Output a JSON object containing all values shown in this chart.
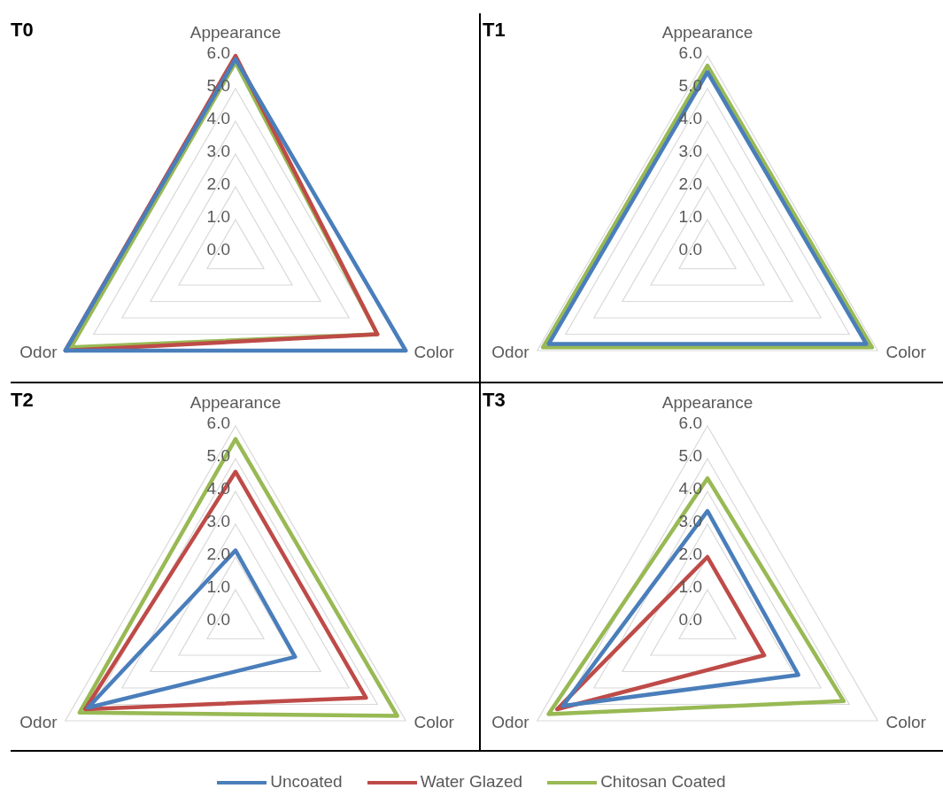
{
  "chart_data": [
    {
      "type": "radar",
      "title": "T0",
      "categories": [
        "Appearance",
        "Color",
        "Odor"
      ],
      "ylim": [
        0,
        6
      ],
      "yticks": [
        {
          "value": 0,
          "label": "0.0"
        },
        {
          "value": 1,
          "label": "1.0"
        },
        {
          "value": 2,
          "label": "2.0"
        },
        {
          "value": 3,
          "label": "3.0"
        },
        {
          "value": 4,
          "label": "4.0"
        },
        {
          "value": 5,
          "label": "5.0"
        },
        {
          "value": 6,
          "label": "6.0"
        }
      ],
      "grid": true,
      "marker": "none",
      "series": [
        {
          "color": "#4a7ebb",
          "values": [
            5.9,
            6.0,
            6.0
          ]
        },
        {
          "color": "#be4b48",
          "values": [
            6.0,
            5.0,
            6.0
          ]
        },
        {
          "color": "#98b954",
          "values": [
            5.8,
            5.0,
            5.8
          ]
        }
      ]
    },
    {
      "type": "radar",
      "title": "T1",
      "categories": [
        "Appearance",
        "Color",
        "Odor"
      ],
      "ylim": [
        0,
        6
      ],
      "yticks": [
        {
          "value": 0,
          "label": "0.0"
        },
        {
          "value": 1,
          "label": "1.0"
        },
        {
          "value": 2,
          "label": "2.0"
        },
        {
          "value": 3,
          "label": "3.0"
        },
        {
          "value": 4,
          "label": "4.0"
        },
        {
          "value": 5,
          "label": "5.0"
        },
        {
          "value": 6,
          "label": "6.0"
        }
      ],
      "grid": true,
      "marker": "none",
      "series": [
        {
          "color": "#4a7ebb",
          "values": [
            5.5,
            5.6,
            5.6
          ]
        },
        {
          "color": "#98b954",
          "values": [
            5.7,
            5.8,
            5.8
          ]
        }
      ]
    },
    {
      "type": "radar",
      "title": "T2",
      "categories": [
        "Appearance",
        "Color",
        "Odor"
      ],
      "ylim": [
        0,
        6
      ],
      "yticks": [
        {
          "value": 0,
          "label": "0.0"
        },
        {
          "value": 1,
          "label": "1.0"
        },
        {
          "value": 2,
          "label": "2.0"
        },
        {
          "value": 3,
          "label": "3.0"
        },
        {
          "value": 4,
          "label": "4.0"
        },
        {
          "value": 5,
          "label": "5.0"
        },
        {
          "value": 6,
          "label": "6.0"
        }
      ],
      "grid": true,
      "marker": "none",
      "series": [
        {
          "color": "#4a7ebb",
          "values": [
            2.2,
            2.1,
            5.2
          ]
        },
        {
          "color": "#be4b48",
          "values": [
            4.6,
            4.6,
            5.3
          ]
        },
        {
          "color": "#98b954",
          "values": [
            5.6,
            5.7,
            5.5
          ]
        }
      ]
    },
    {
      "type": "radar",
      "title": "T3",
      "categories": [
        "Appearance",
        "Color",
        "Odor"
      ],
      "ylim": [
        0,
        6
      ],
      "yticks": [
        {
          "value": 0,
          "label": "0.0"
        },
        {
          "value": 1,
          "label": "1.0"
        },
        {
          "value": 2,
          "label": "2.0"
        },
        {
          "value": 3,
          "label": "3.0"
        },
        {
          "value": 4,
          "label": "4.0"
        },
        {
          "value": 5,
          "label": "5.0"
        },
        {
          "value": 6,
          "label": "6.0"
        }
      ],
      "grid": true,
      "legend": "bottom",
      "marker": "none",
      "series": [
        {
          "name": "Uncoated",
          "color": "#4a7ebb",
          "values": [
            3.4,
            3.2,
            5.1
          ]
        },
        {
          "name": "Water Glazed",
          "color": "#be4b48",
          "values": [
            2.0,
            2.0,
            5.3
          ]
        },
        {
          "name": "Chitosan Coated",
          "color": "#98b954",
          "values": [
            4.4,
            4.8,
            5.6
          ]
        }
      ]
    }
  ]
}
